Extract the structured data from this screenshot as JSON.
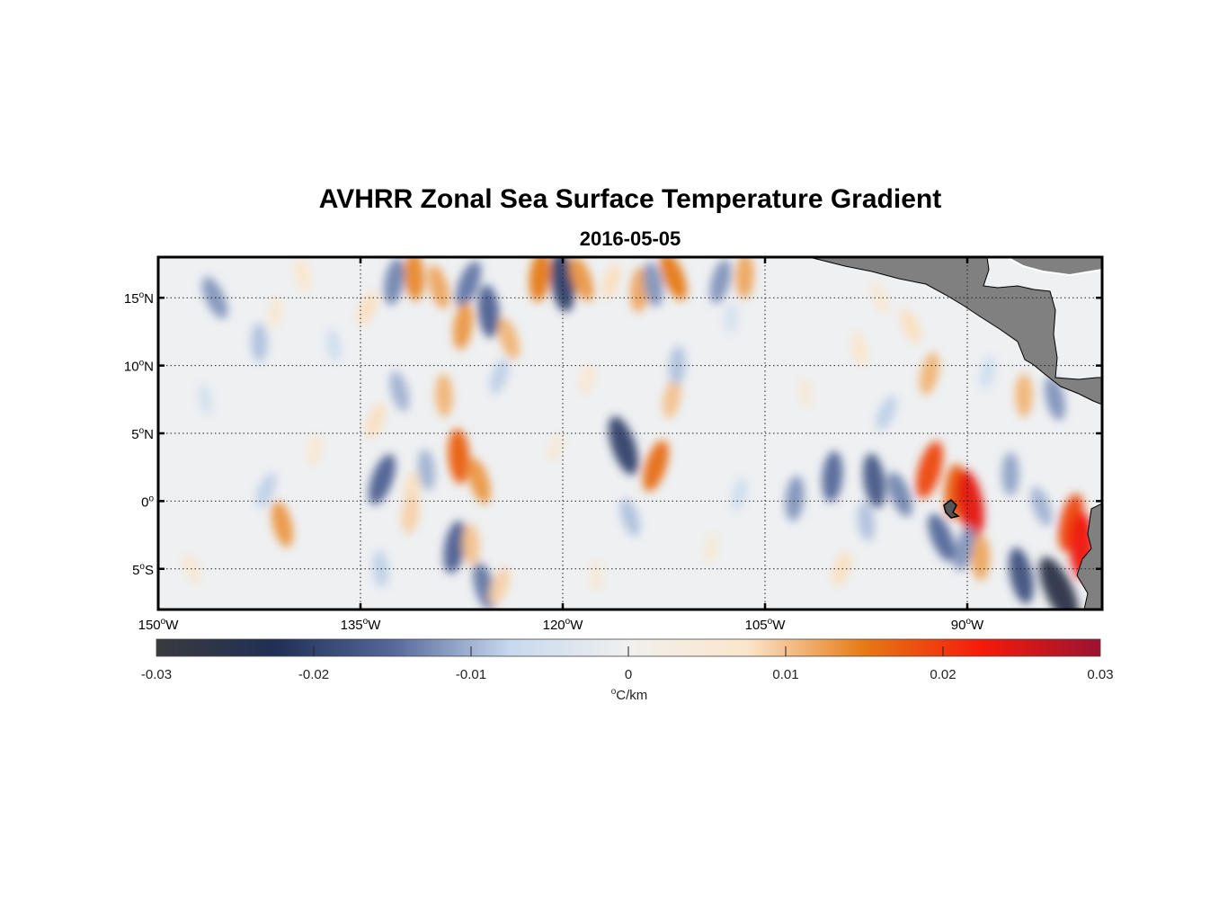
{
  "title": "AVHRR Zonal Sea Surface Temperature Gradient",
  "subtitle": "2016-05-05",
  "map": {
    "lon_range": [
      -150,
      -80
    ],
    "lat_range": [
      -8,
      18
    ],
    "grid": true,
    "land_color": "#808080",
    "lon_ticks": [
      {
        "value": -150,
        "label": "150",
        "sup": "o",
        "hemi": "W"
      },
      {
        "value": -135,
        "label": "135",
        "sup": "o",
        "hemi": "W"
      },
      {
        "value": -120,
        "label": "120",
        "sup": "o",
        "hemi": "W"
      },
      {
        "value": -105,
        "label": "105",
        "sup": "o",
        "hemi": "W"
      },
      {
        "value": -90,
        "label": "90",
        "sup": "o",
        "hemi": "W"
      }
    ],
    "lat_ticks": [
      {
        "value": 15,
        "label": "15",
        "sup": "o",
        "hemi": "N"
      },
      {
        "value": 10,
        "label": "10",
        "sup": "o",
        "hemi": "N"
      },
      {
        "value": 5,
        "label": "5",
        "sup": "o",
        "hemi": "N"
      },
      {
        "value": 0,
        "label": "0",
        "sup": "o",
        "hemi": ""
      },
      {
        "value": -5,
        "label": "5",
        "sup": "o",
        "hemi": "S"
      }
    ]
  },
  "colorbar": {
    "range": [
      -0.03,
      0.03
    ],
    "ticks": [
      {
        "value": -0.03,
        "label": "-0.03"
      },
      {
        "value": -0.02,
        "label": "-0.02"
      },
      {
        "value": -0.01,
        "label": "-0.01"
      },
      {
        "value": 0,
        "label": "0"
      },
      {
        "value": 0.01,
        "label": "0.01"
      },
      {
        "value": 0.02,
        "label": "0.02"
      },
      {
        "value": 0.03,
        "label": "0.03"
      }
    ],
    "unit_sup": "o",
    "unit": "C/km",
    "colors": [
      "#3a3a3e",
      "#1f2f55",
      "#54689a",
      "#c7d9ee",
      "#f0f0ee",
      "#fbe6cc",
      "#e67a14",
      "#f51a0a",
      "#9c1230"
    ]
  },
  "features": [
    {
      "lon": -145.8,
      "lat": 15.0,
      "v": -0.012
    },
    {
      "lon": -141.3,
      "lat": 13.9,
      "v": 0.006
    },
    {
      "lon": -142.5,
      "lat": 11.7,
      "v": -0.009
    },
    {
      "lon": -139.3,
      "lat": 16.7,
      "v": 0.007
    },
    {
      "lon": -134.5,
      "lat": 14.2,
      "v": 0.008
    },
    {
      "lon": -132.5,
      "lat": 16.2,
      "v": -0.013
    },
    {
      "lon": -131.0,
      "lat": 16.6,
      "v": 0.014
    },
    {
      "lon": -129.2,
      "lat": 15.8,
      "v": 0.012
    },
    {
      "lon": -127.0,
      "lat": 16.0,
      "v": -0.014
    },
    {
      "lon": -127.4,
      "lat": 12.9,
      "v": 0.013
    },
    {
      "lon": -125.5,
      "lat": 14.0,
      "v": -0.016
    },
    {
      "lon": -124.0,
      "lat": 12.0,
      "v": 0.011
    },
    {
      "lon": -124.7,
      "lat": 9.2,
      "v": -0.008
    },
    {
      "lon": -121.7,
      "lat": 16.6,
      "v": 0.015
    },
    {
      "lon": -120.0,
      "lat": 16.2,
      "v": -0.02
    },
    {
      "lon": -118.6,
      "lat": 16.4,
      "v": 0.013
    },
    {
      "lon": -116.4,
      "lat": 16.2,
      "v": 0.008
    },
    {
      "lon": -114.3,
      "lat": 15.6,
      "v": 0.012
    },
    {
      "lon": -113.3,
      "lat": 16.0,
      "v": -0.012
    },
    {
      "lon": -111.8,
      "lat": 16.6,
      "v": 0.015
    },
    {
      "lon": -108.3,
      "lat": 16.2,
      "v": -0.012
    },
    {
      "lon": -106.5,
      "lat": 16.6,
      "v": 0.012
    },
    {
      "lon": -98.0,
      "lat": 11.2,
      "v": 0.007
    },
    {
      "lon": -94.2,
      "lat": 12.9,
      "v": 0.008
    },
    {
      "lon": -92.8,
      "lat": 9.4,
      "v": 0.011
    },
    {
      "lon": -85.8,
      "lat": 7.8,
      "v": 0.011
    },
    {
      "lon": -83.5,
      "lat": 7.6,
      "v": -0.012
    },
    {
      "lon": -96.0,
      "lat": 6.5,
      "v": -0.008
    },
    {
      "lon": -111.9,
      "lat": 7.6,
      "v": 0.01
    },
    {
      "lon": -128.8,
      "lat": 7.8,
      "v": 0.011
    },
    {
      "lon": -132.1,
      "lat": 8.1,
      "v": -0.01
    },
    {
      "lon": -133.9,
      "lat": 5.9,
      "v": 0.008
    },
    {
      "lon": -138.4,
      "lat": 3.8,
      "v": 0.006
    },
    {
      "lon": -127.7,
      "lat": 3.3,
      "v": 0.017
    },
    {
      "lon": -126.2,
      "lat": 1.5,
      "v": 0.013
    },
    {
      "lon": -133.4,
      "lat": 1.6,
      "v": -0.016
    },
    {
      "lon": -131.2,
      "lat": 0.8,
      "v": 0.008
    },
    {
      "lon": -130.1,
      "lat": 2.3,
      "v": -0.01
    },
    {
      "lon": -115.5,
      "lat": 4.1,
      "v": -0.02
    },
    {
      "lon": -113.1,
      "lat": 2.6,
      "v": 0.016
    },
    {
      "lon": -100.0,
      "lat": 1.8,
      "v": -0.015
    },
    {
      "lon": -96.9,
      "lat": 1.5,
      "v": -0.017
    },
    {
      "lon": -95.0,
      "lat": 0.5,
      "v": -0.013
    },
    {
      "lon": -92.8,
      "lat": 2.3,
      "v": 0.019
    },
    {
      "lon": -90.9,
      "lat": 0.7,
      "v": 0.017
    },
    {
      "lon": -89.8,
      "lat": -0.2,
      "v": 0.024
    },
    {
      "lon": -91.9,
      "lat": -2.7,
      "v": -0.015
    },
    {
      "lon": -90.2,
      "lat": -3.5,
      "v": -0.012
    },
    {
      "lon": -89.0,
      "lat": -4.2,
      "v": 0.012
    },
    {
      "lon": -86.0,
      "lat": -5.5,
      "v": -0.018
    },
    {
      "lon": -83.2,
      "lat": -6.6,
      "v": -0.026
    },
    {
      "lon": -82.3,
      "lat": -1.6,
      "v": 0.019
    },
    {
      "lon": -81.5,
      "lat": -3.3,
      "v": 0.023
    },
    {
      "lon": -140.8,
      "lat": -1.7,
      "v": 0.013
    },
    {
      "lon": -142.0,
      "lat": 0.8,
      "v": -0.008
    },
    {
      "lon": -128.0,
      "lat": -3.4,
      "v": -0.016
    },
    {
      "lon": -126.8,
      "lat": -3.2,
      "v": 0.01
    },
    {
      "lon": -125.8,
      "lat": -6.3,
      "v": -0.014
    },
    {
      "lon": -124.7,
      "lat": -6.3,
      "v": 0.009
    },
    {
      "lon": -131.3,
      "lat": -1.0,
      "v": 0.009
    },
    {
      "lon": -133.5,
      "lat": -5.0,
      "v": -0.008
    },
    {
      "lon": -115.0,
      "lat": -1.2,
      "v": -0.009
    },
    {
      "lon": -99.3,
      "lat": -5.0,
      "v": 0.008
    },
    {
      "lon": -102.8,
      "lat": 0.2,
      "v": -0.012
    },
    {
      "lon": -97.5,
      "lat": -1.5,
      "v": -0.009
    },
    {
      "lon": -84.5,
      "lat": -0.4,
      "v": -0.01
    },
    {
      "lon": -106.9,
      "lat": 0.5,
      "v": -0.006
    },
    {
      "lon": -111.5,
      "lat": 10.0,
      "v": -0.009
    },
    {
      "lon": -137.0,
      "lat": 11.5,
      "v": -0.006
    },
    {
      "lon": -147.5,
      "lat": -5.0,
      "v": 0.006
    },
    {
      "lon": -118.2,
      "lat": 9.0,
      "v": 0.006
    },
    {
      "lon": -107.5,
      "lat": 13.5,
      "v": -0.005
    },
    {
      "lon": -102.0,
      "lat": 8.0,
      "v": 0.005
    },
    {
      "lon": -96.5,
      "lat": 15.0,
      "v": 0.006
    },
    {
      "lon": -88.5,
      "lat": 9.5,
      "v": -0.006
    },
    {
      "lon": -86.8,
      "lat": 2.0,
      "v": -0.011
    },
    {
      "lon": -146.5,
      "lat": 7.5,
      "v": -0.005
    },
    {
      "lon": -120.5,
      "lat": 4.0,
      "v": 0.005
    },
    {
      "lon": -109.0,
      "lat": -3.5,
      "v": 0.005
    },
    {
      "lon": -117.5,
      "lat": -5.5,
      "v": 0.005
    }
  ]
}
